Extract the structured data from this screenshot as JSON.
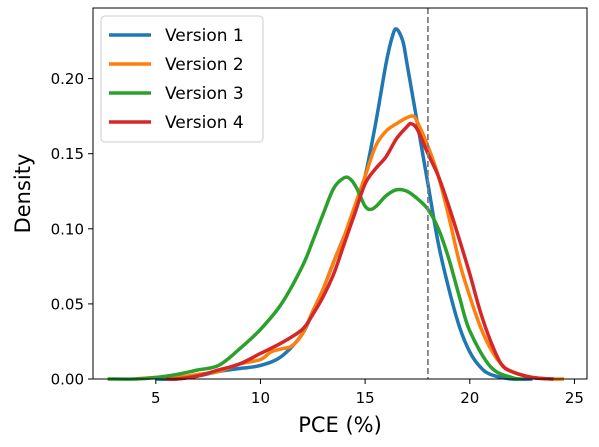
{
  "chart_data": {
    "type": "line",
    "title": "",
    "xlabel": "PCE (%)",
    "ylabel": "Density",
    "xlim": [
      2.0,
      25.6
    ],
    "ylim": [
      0.0,
      0.247
    ],
    "x_ticks": [
      5,
      10,
      15,
      20,
      25
    ],
    "x_tick_labels": [
      "5",
      "10",
      "15",
      "20",
      "25"
    ],
    "y_ticks": [
      0.0,
      0.05,
      0.1,
      0.15,
      0.2
    ],
    "y_tick_labels": [
      "0.00",
      "0.05",
      "0.10",
      "0.15",
      "0.20"
    ],
    "grid": false,
    "legend_position": "top-left",
    "reference_line": {
      "x": 18.0,
      "style": "dashed",
      "color": "#808080"
    },
    "series": [
      {
        "name": "Version 1",
        "color": "#1f77b4",
        "x": [
          5,
          6,
          7,
          8,
          9,
          10,
          11,
          12,
          12.5,
          13,
          13.5,
          14,
          14.5,
          15,
          15.5,
          16,
          16.3,
          16.5,
          16.8,
          17,
          17.5,
          18,
          18.5,
          19,
          19.5,
          20,
          20.5,
          21,
          22,
          23
        ],
        "y": [
          0.0,
          0.0,
          0.002,
          0.005,
          0.007,
          0.009,
          0.015,
          0.03,
          0.045,
          0.06,
          0.078,
          0.095,
          0.11,
          0.135,
          0.17,
          0.21,
          0.228,
          0.233,
          0.225,
          0.21,
          0.17,
          0.13,
          0.09,
          0.06,
          0.035,
          0.018,
          0.008,
          0.003,
          0.0,
          0.0
        ]
      },
      {
        "name": "Version 2",
        "color": "#ff7f0e",
        "x": [
          4,
          5,
          6,
          7,
          8,
          9,
          10,
          10.5,
          11,
          11.5,
          12,
          12.5,
          13,
          13.5,
          14,
          14.5,
          15,
          15.5,
          16,
          16.5,
          17,
          17.3,
          17.5,
          18,
          18.5,
          19,
          19.5,
          20,
          20.5,
          21,
          21.5,
          22,
          23,
          24,
          24.5
        ],
        "y": [
          0.0,
          0.001,
          0.001,
          0.003,
          0.005,
          0.01,
          0.013,
          0.018,
          0.02,
          0.022,
          0.03,
          0.045,
          0.06,
          0.078,
          0.095,
          0.115,
          0.135,
          0.155,
          0.165,
          0.17,
          0.174,
          0.175,
          0.171,
          0.155,
          0.135,
          0.108,
          0.078,
          0.055,
          0.035,
          0.02,
          0.01,
          0.005,
          0.001,
          0.0,
          0.0
        ]
      },
      {
        "name": "Version 3",
        "color": "#2ca02c",
        "x": [
          2.7,
          4,
          5,
          6,
          7,
          8,
          9,
          10,
          11,
          12,
          12.5,
          13,
          13.5,
          14,
          14.3,
          14.6,
          15,
          15.3,
          15.6,
          16,
          16.5,
          17,
          17.5,
          18,
          18.5,
          19,
          19.5,
          20,
          21,
          22,
          22.5
        ],
        "y": [
          0.0,
          0.0,
          0.001,
          0.003,
          0.006,
          0.009,
          0.02,
          0.033,
          0.05,
          0.075,
          0.092,
          0.11,
          0.127,
          0.134,
          0.133,
          0.127,
          0.115,
          0.113,
          0.116,
          0.122,
          0.126,
          0.125,
          0.12,
          0.113,
          0.1,
          0.08,
          0.055,
          0.032,
          0.008,
          0.001,
          0.0
        ]
      },
      {
        "name": "Version 4",
        "color": "#d62728",
        "x": [
          5.5,
          6,
          7,
          8,
          9,
          10,
          11,
          12,
          12.5,
          13,
          13.5,
          14,
          14.5,
          15,
          15.5,
          16,
          16.5,
          17,
          17.2,
          17.5,
          18,
          18.5,
          19,
          19.5,
          20,
          20.5,
          21,
          21.5,
          22,
          23,
          24
        ],
        "y": [
          0.0,
          0.0,
          0.002,
          0.006,
          0.01,
          0.017,
          0.024,
          0.033,
          0.043,
          0.055,
          0.07,
          0.09,
          0.11,
          0.13,
          0.14,
          0.148,
          0.16,
          0.168,
          0.17,
          0.166,
          0.15,
          0.135,
          0.115,
          0.093,
          0.07,
          0.045,
          0.025,
          0.01,
          0.005,
          0.001,
          0.0
        ]
      }
    ]
  }
}
